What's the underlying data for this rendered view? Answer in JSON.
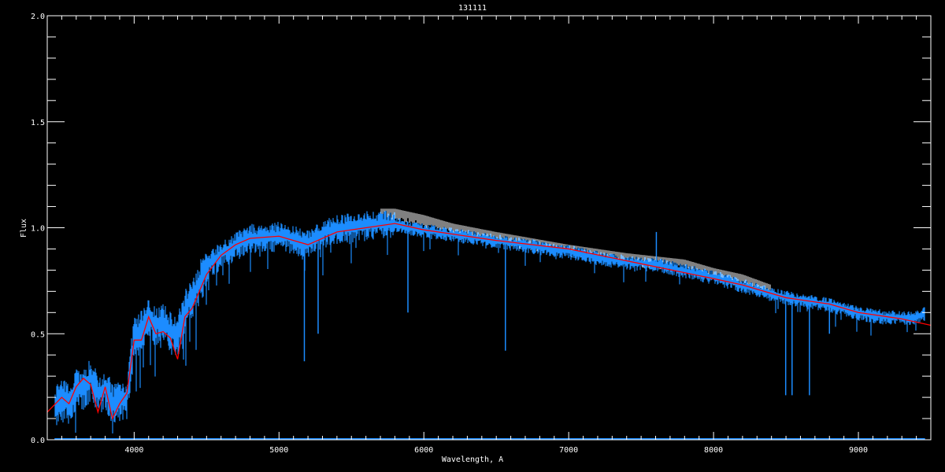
{
  "chart_data": {
    "type": "line",
    "title": "131111",
    "xlabel": "Wavelength, A",
    "ylabel": "Flux",
    "xlim": [
      3400,
      9500
    ],
    "ylim": [
      0,
      2.0
    ],
    "xticks": [
      "4000",
      "5000",
      "6000",
      "7000",
      "8000",
      "9000"
    ],
    "yticks": [
      "0.0",
      "0.5",
      "1.0",
      "1.5",
      "2.0"
    ],
    "grid": false,
    "colors": {
      "observed": "#1c8cff",
      "model": "#ff0000",
      "overlay": "#ffffff",
      "axes": "#ffffff",
      "background": "#000000"
    },
    "observed": {
      "x": [
        3450,
        3500,
        3550,
        3600,
        3650,
        3700,
        3750,
        3800,
        3850,
        3900,
        3950,
        4000,
        4050,
        4100,
        4150,
        4200,
        4250,
        4300,
        4350,
        4400,
        4450,
        4500,
        4600,
        4700,
        4800,
        4900,
        5000,
        5100,
        5200,
        5300,
        5400,
        5500,
        5600,
        5700,
        5800,
        5900,
        6000,
        6200,
        6400,
        6600,
        6800,
        7000,
        7200,
        7400,
        7600,
        7800,
        8000,
        8200,
        8400,
        8600,
        8800,
        9000,
        9200,
        9400,
        9460
      ],
      "y": [
        0.17,
        0.2,
        0.18,
        0.26,
        0.24,
        0.3,
        0.22,
        0.25,
        0.18,
        0.2,
        0.2,
        0.5,
        0.52,
        0.58,
        0.55,
        0.55,
        0.52,
        0.5,
        0.62,
        0.68,
        0.75,
        0.82,
        0.88,
        0.92,
        0.96,
        0.95,
        0.97,
        0.95,
        0.93,
        0.98,
        1.0,
        1.01,
        1.02,
        1.02,
        1.02,
        1.0,
        0.99,
        0.97,
        0.95,
        0.93,
        0.91,
        0.89,
        0.86,
        0.84,
        0.83,
        0.8,
        0.77,
        0.73,
        0.69,
        0.66,
        0.64,
        0.6,
        0.58,
        0.58,
        0.6
      ]
    },
    "model": {
      "x": [
        3400,
        3500,
        3550,
        3600,
        3650,
        3700,
        3750,
        3800,
        3850,
        3900,
        3950,
        4000,
        4050,
        4100,
        4150,
        4200,
        4250,
        4300,
        4350,
        4400,
        4500,
        4600,
        4700,
        4800,
        5000,
        5200,
        5400,
        5600,
        5800,
        6000,
        6200,
        6500,
        7000,
        7500,
        8000,
        8200,
        8500,
        8600,
        8800,
        9000,
        9300,
        9500
      ],
      "y": [
        0.13,
        0.2,
        0.17,
        0.25,
        0.29,
        0.26,
        0.13,
        0.25,
        0.1,
        0.17,
        0.22,
        0.47,
        0.47,
        0.58,
        0.5,
        0.51,
        0.48,
        0.38,
        0.58,
        0.62,
        0.78,
        0.87,
        0.92,
        0.95,
        0.96,
        0.92,
        0.98,
        1.0,
        1.02,
        0.99,
        0.97,
        0.94,
        0.9,
        0.83,
        0.76,
        0.73,
        0.67,
        0.66,
        0.64,
        0.6,
        0.57,
        0.54
      ]
    },
    "overlay": {
      "x": [
        5700,
        5800,
        6000,
        6200,
        6500,
        7000,
        7400,
        7800,
        8000,
        8200,
        8400
      ],
      "y": [
        1.08,
        1.08,
        1.05,
        1.01,
        0.97,
        0.91,
        0.87,
        0.84,
        0.8,
        0.77,
        0.72
      ]
    },
    "absorption_lines": [
      {
        "x": 5175,
        "y": 0.37
      },
      {
        "x": 5270,
        "y": 0.5
      },
      {
        "x": 5890,
        "y": 0.6
      },
      {
        "x": 6563,
        "y": 0.42
      },
      {
        "x": 8498,
        "y": 0.21
      },
      {
        "x": 8542,
        "y": 0.21
      },
      {
        "x": 8662,
        "y": 0.21
      },
      {
        "x": 8800,
        "y": 0.5
      }
    ],
    "emission_lines": [
      {
        "x": 7605,
        "y": 0.98
      }
    ]
  }
}
